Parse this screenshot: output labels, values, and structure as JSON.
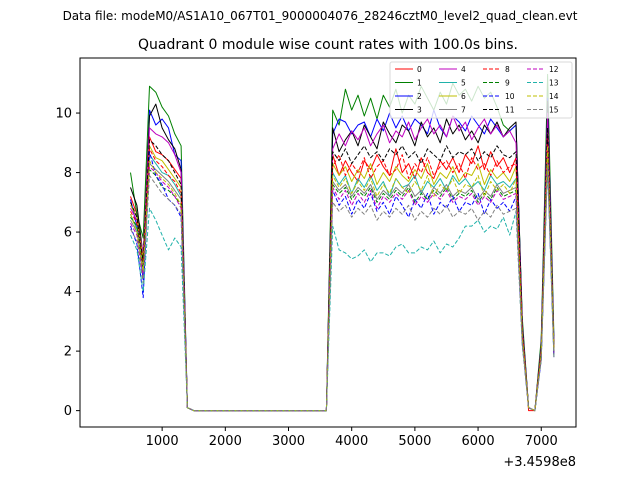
{
  "chart_data": {
    "type": "line",
    "suptitle": "Data file: modeM0/AS1A10_067T01_9000004076_28246cztM0_level2_quad_clean.evt",
    "title": "Quadrant 0 module wise count rates with 100.0s bins.",
    "xlabel": "",
    "ylabel": "",
    "x_offset_label": "+3.4598e8",
    "xlim": [
      -300,
      7550
    ],
    "ylim": [
      -0.55,
      11.85
    ],
    "xticks": [
      1000,
      2000,
      3000,
      4000,
      5000,
      6000,
      7000
    ],
    "yticks": [
      0,
      2,
      4,
      6,
      8,
      10
    ],
    "legend_position": "top-right",
    "x": [
      500,
      600,
      700,
      800,
      900,
      1000,
      1100,
      1200,
      1300,
      1400,
      1500,
      1600,
      1700,
      1800,
      1900,
      2000,
      2100,
      2200,
      2300,
      2400,
      2500,
      2600,
      2700,
      2800,
      2900,
      3000,
      3100,
      3200,
      3300,
      3400,
      3500,
      3600,
      3700,
      3800,
      3900,
      4000,
      4100,
      4200,
      4300,
      4400,
      4500,
      4600,
      4700,
      4800,
      4900,
      5000,
      5100,
      5200,
      5300,
      5400,
      5500,
      5600,
      5700,
      5800,
      5900,
      6000,
      6100,
      6200,
      6300,
      6400,
      6500,
      6600,
      6700,
      6800,
      6900,
      7000,
      7100,
      7200
    ],
    "series": [
      {
        "name": "0",
        "color": "#ff0000",
        "dash": false,
        "values": [
          7.2,
          6.6,
          5.0,
          9.2,
          8.7,
          8.6,
          8.4,
          8.1,
          7.8,
          0.1,
          0.0,
          0.0,
          0.0,
          0.0,
          0.0,
          0.0,
          0.0,
          0.0,
          0.0,
          0.0,
          0.0,
          0.0,
          0.0,
          0.0,
          0.0,
          0.0,
          0.0,
          0.0,
          0.0,
          0.0,
          0.0,
          0.0,
          8.6,
          7.9,
          8.4,
          8.0,
          7.7,
          8.4,
          8.1,
          8.6,
          8.2,
          7.9,
          8.8,
          8.0,
          8.3,
          7.8,
          8.5,
          8.0,
          7.8,
          8.4,
          8.1,
          8.5,
          8.0,
          8.6,
          8.3,
          8.9,
          8.1,
          8.7,
          8.2,
          8.5,
          8.0,
          8.5,
          2.7,
          0.0,
          0.0,
          2.0,
          9.0,
          2.1
        ]
      },
      {
        "name": "1",
        "color": "#008000",
        "dash": false,
        "values": [
          8.0,
          6.6,
          5.8,
          10.9,
          10.7,
          10.2,
          9.9,
          9.3,
          8.9,
          0.1,
          0.0,
          0.0,
          0.0,
          0.0,
          0.0,
          0.0,
          0.0,
          0.0,
          0.0,
          0.0,
          0.0,
          0.0,
          0.0,
          0.0,
          0.0,
          0.0,
          0.0,
          0.0,
          0.0,
          0.0,
          0.0,
          0.0,
          10.1,
          9.6,
          10.8,
          10.1,
          10.6,
          9.9,
          10.5,
          9.8,
          10.6,
          10.2,
          10.8,
          10.0,
          10.6,
          10.3,
          10.9,
          10.5,
          10.1,
          10.7,
          10.3,
          11.0,
          10.6,
          10.8,
          10.4,
          10.9,
          10.5,
          10.7,
          10.2,
          9.6,
          9.4,
          9.6,
          3.1,
          0.1,
          0.0,
          2.4,
          11.3,
          2.5
        ]
      },
      {
        "name": "2",
        "color": "#0000ff",
        "dash": false,
        "values": [
          7.1,
          6.2,
          4.4,
          10.1,
          9.6,
          9.8,
          9.5,
          8.6,
          8.4,
          0.1,
          0.0,
          0.0,
          0.0,
          0.0,
          0.0,
          0.0,
          0.0,
          0.0,
          0.0,
          0.0,
          0.0,
          0.0,
          0.0,
          0.0,
          0.0,
          0.0,
          0.0,
          0.0,
          0.0,
          0.0,
          0.0,
          0.0,
          9.3,
          9.8,
          9.7,
          9.3,
          9.6,
          9.7,
          9.2,
          9.8,
          9.4,
          10.0,
          9.5,
          9.9,
          9.4,
          9.8,
          9.6,
          9.3,
          10.1,
          9.5,
          9.2,
          9.9,
          9.7,
          9.4,
          9.9,
          9.6,
          9.3,
          9.8,
          9.5,
          9.2,
          9.4,
          9.6,
          2.9,
          0.1,
          0.0,
          2.2,
          10.5,
          2.3
        ]
      },
      {
        "name": "3",
        "color": "#000000",
        "dash": false,
        "values": [
          7.5,
          6.9,
          5.2,
          9.9,
          10.3,
          9.5,
          9.1,
          8.8,
          8.1,
          0.1,
          0.0,
          0.0,
          0.0,
          0.0,
          0.0,
          0.0,
          0.0,
          0.0,
          0.0,
          0.0,
          0.0,
          0.0,
          0.0,
          0.0,
          0.0,
          0.0,
          0.0,
          0.0,
          0.0,
          0.0,
          0.0,
          0.0,
          9.5,
          8.7,
          9.1,
          9.4,
          8.9,
          9.6,
          9.2,
          8.8,
          9.7,
          9.3,
          9.0,
          9.6,
          9.4,
          8.9,
          9.7,
          9.2,
          9.5,
          9.0,
          9.8,
          9.3,
          9.6,
          9.1,
          9.4,
          9.0,
          9.6,
          9.3,
          9.7,
          9.2,
          9.5,
          9.7,
          2.9,
          0.1,
          0.0,
          2.2,
          10.4,
          2.2
        ]
      },
      {
        "name": "4",
        "color": "#bf00bf",
        "dash": false,
        "values": [
          6.8,
          6.4,
          5.3,
          9.5,
          9.3,
          9.2,
          9.0,
          8.6,
          8.0,
          0.1,
          0.0,
          0.0,
          0.0,
          0.0,
          0.0,
          0.0,
          0.0,
          0.0,
          0.0,
          0.0,
          0.0,
          0.0,
          0.0,
          0.0,
          0.0,
          0.0,
          0.0,
          0.0,
          0.0,
          0.0,
          0.0,
          0.0,
          8.8,
          9.3,
          8.9,
          9.4,
          9.1,
          9.5,
          8.9,
          9.3,
          9.6,
          9.0,
          9.4,
          9.2,
          9.7,
          9.1,
          9.5,
          9.8,
          9.3,
          9.6,
          9.2,
          9.9,
          9.4,
          9.7,
          9.1,
          9.5,
          9.8,
          9.3,
          9.6,
          9.2,
          9.4,
          9.0,
          2.8,
          0.1,
          0.0,
          2.1,
          10.0,
          2.2
        ]
      },
      {
        "name": "5",
        "color": "#20b2aa",
        "dash": false,
        "values": [
          6.6,
          6.1,
          4.8,
          8.6,
          8.3,
          8.0,
          7.9,
          7.6,
          7.2,
          0.1,
          0.0,
          0.0,
          0.0,
          0.0,
          0.0,
          0.0,
          0.0,
          0.0,
          0.0,
          0.0,
          0.0,
          0.0,
          0.0,
          0.0,
          0.0,
          0.0,
          0.0,
          0.0,
          0.0,
          0.0,
          0.0,
          0.0,
          8.0,
          7.6,
          7.9,
          7.3,
          7.8,
          7.5,
          7.9,
          7.4,
          7.7,
          7.2,
          7.8,
          7.5,
          7.6,
          7.9,
          7.3,
          7.7,
          7.5,
          7.8,
          7.4,
          7.9,
          7.6,
          7.8,
          7.5,
          7.7,
          7.4,
          7.9,
          7.6,
          7.7,
          7.5,
          7.8,
          2.5,
          0.1,
          0.0,
          1.9,
          9.0,
          2.0
        ]
      },
      {
        "name": "6",
        "color": "#bfbf00",
        "dash": false,
        "values": [
          6.9,
          6.5,
          5.1,
          8.9,
          8.5,
          8.4,
          8.1,
          7.8,
          7.5,
          0.1,
          0.0,
          0.0,
          0.0,
          0.0,
          0.0,
          0.0,
          0.0,
          0.0,
          0.0,
          0.0,
          0.0,
          0.0,
          0.0,
          0.0,
          0.0,
          0.0,
          0.0,
          0.0,
          0.0,
          0.0,
          0.0,
          0.0,
          8.3,
          7.9,
          8.2,
          7.7,
          8.1,
          7.8,
          8.3,
          7.6,
          8.0,
          7.7,
          8.2,
          7.9,
          7.7,
          8.1,
          7.8,
          8.3,
          7.6,
          8.0,
          7.8,
          8.2,
          7.7,
          8.0,
          7.9,
          8.3,
          7.6,
          8.1,
          7.8,
          8.0,
          7.7,
          8.2,
          2.6,
          0.1,
          0.0,
          2.0,
          9.3,
          2.1
        ]
      },
      {
        "name": "7",
        "color": "#808080",
        "dash": false,
        "values": [
          6.4,
          6.0,
          4.6,
          8.3,
          8.1,
          7.9,
          7.7,
          7.4,
          7.1,
          0.1,
          0.0,
          0.0,
          0.0,
          0.0,
          0.0,
          0.0,
          0.0,
          0.0,
          0.0,
          0.0,
          0.0,
          0.0,
          0.0,
          0.0,
          0.0,
          0.0,
          0.0,
          0.0,
          0.0,
          0.0,
          0.0,
          0.0,
          7.7,
          7.4,
          7.6,
          7.2,
          7.5,
          7.3,
          7.6,
          7.1,
          7.4,
          7.2,
          7.5,
          7.3,
          7.6,
          7.2,
          7.4,
          7.1,
          7.5,
          7.3,
          7.6,
          7.2,
          7.4,
          7.3,
          7.5,
          7.1,
          7.4,
          7.2,
          7.6,
          7.3,
          7.4,
          7.5,
          2.4,
          0.1,
          0.0,
          1.8,
          8.8,
          1.9
        ]
      },
      {
        "name": "8",
        "color": "#ff0000",
        "dash": true,
        "values": [
          6.7,
          6.3,
          4.9,
          8.8,
          8.4,
          8.2,
          7.9,
          7.7,
          7.3,
          0.1,
          0.0,
          0.0,
          0.0,
          0.0,
          0.0,
          0.0,
          0.0,
          0.0,
          0.0,
          0.0,
          0.0,
          0.0,
          0.0,
          0.0,
          0.0,
          0.0,
          0.0,
          0.0,
          0.0,
          0.0,
          0.0,
          0.0,
          8.2,
          8.6,
          7.9,
          8.3,
          8.0,
          8.5,
          7.8,
          8.2,
          8.4,
          7.9,
          8.1,
          8.6,
          7.8,
          8.3,
          8.0,
          8.5,
          7.9,
          8.2,
          8.4,
          8.0,
          8.3,
          7.8,
          8.5,
          8.1,
          8.3,
          7.9,
          8.4,
          8.0,
          8.2,
          8.3,
          2.6,
          0.1,
          0.0,
          2.0,
          9.2,
          2.0
        ]
      },
      {
        "name": "9",
        "color": "#008000",
        "dash": true,
        "values": [
          6.5,
          6.2,
          4.7,
          8.1,
          7.9,
          7.5,
          7.4,
          7.2,
          6.9,
          0.1,
          0.0,
          0.0,
          0.0,
          0.0,
          0.0,
          0.0,
          0.0,
          0.0,
          0.0,
          0.0,
          0.0,
          0.0,
          0.0,
          0.0,
          0.0,
          0.0,
          0.0,
          0.0,
          0.0,
          0.0,
          0.0,
          0.0,
          7.6,
          7.3,
          7.5,
          7.1,
          7.4,
          7.2,
          7.5,
          7.0,
          7.3,
          7.1,
          7.4,
          7.2,
          7.5,
          7.0,
          7.3,
          7.1,
          7.4,
          7.2,
          7.5,
          7.1,
          7.3,
          7.2,
          7.4,
          7.0,
          7.3,
          7.1,
          7.5,
          7.2,
          7.3,
          7.4,
          2.4,
          0.1,
          0.0,
          1.8,
          8.6,
          1.9
        ]
      },
      {
        "name": "10",
        "color": "#0000ff",
        "dash": true,
        "values": [
          6.2,
          5.6,
          3.8,
          8.7,
          7.9,
          7.6,
          7.1,
          6.9,
          6.5,
          0.1,
          0.0,
          0.0,
          0.0,
          0.0,
          0.0,
          0.0,
          0.0,
          0.0,
          0.0,
          0.0,
          0.0,
          0.0,
          0.0,
          0.0,
          0.0,
          0.0,
          0.0,
          0.0,
          0.0,
          0.0,
          0.0,
          0.0,
          7.4,
          6.9,
          7.2,
          6.6,
          7.1,
          6.8,
          7.3,
          6.7,
          7.0,
          6.6,
          7.2,
          6.9,
          6.5,
          7.1,
          6.8,
          7.3,
          6.6,
          7.0,
          6.8,
          7.2,
          6.7,
          7.0,
          6.9,
          7.3,
          6.6,
          7.1,
          6.8,
          7.0,
          6.7,
          7.2,
          2.3,
          0.1,
          0.0,
          1.7,
          8.4,
          1.8
        ]
      },
      {
        "name": "11",
        "color": "#000000",
        "dash": true,
        "values": [
          7.0,
          6.5,
          5.0,
          9.1,
          8.9,
          8.6,
          8.4,
          8.0,
          7.6,
          0.1,
          0.0,
          0.0,
          0.0,
          0.0,
          0.0,
          0.0,
          0.0,
          0.0,
          0.0,
          0.0,
          0.0,
          0.0,
          0.0,
          0.0,
          0.0,
          0.0,
          0.0,
          0.0,
          0.0,
          0.0,
          0.0,
          0.0,
          8.7,
          8.4,
          8.8,
          8.3,
          8.6,
          8.9,
          8.5,
          8.7,
          8.4,
          8.8,
          8.6,
          8.9,
          8.5,
          8.7,
          8.3,
          8.8,
          8.6,
          8.4,
          8.9,
          8.5,
          8.7,
          8.6,
          8.8,
          8.4,
          8.7,
          8.5,
          8.9,
          8.6,
          8.5,
          8.7,
          2.7,
          0.1,
          0.0,
          2.0,
          9.5,
          2.1
        ]
      },
      {
        "name": "12",
        "color": "#bf00bf",
        "dash": true,
        "values": [
          6.3,
          5.9,
          4.5,
          8.2,
          8.0,
          7.7,
          7.5,
          7.2,
          6.8,
          0.1,
          0.0,
          0.0,
          0.0,
          0.0,
          0.0,
          0.0,
          0.0,
          0.0,
          0.0,
          0.0,
          0.0,
          0.0,
          0.0,
          0.0,
          0.0,
          0.0,
          0.0,
          0.0,
          0.0,
          0.0,
          0.0,
          0.0,
          7.5,
          7.1,
          7.4,
          6.9,
          7.3,
          7.0,
          7.4,
          6.8,
          7.2,
          7.0,
          7.3,
          7.1,
          7.4,
          6.9,
          7.2,
          7.0,
          7.3,
          7.1,
          7.4,
          7.0,
          7.2,
          7.1,
          7.3,
          6.9,
          7.2,
          7.0,
          7.4,
          7.1,
          7.2,
          7.3,
          2.4,
          0.1,
          0.0,
          1.8,
          8.5,
          1.9
        ]
      },
      {
        "name": "13",
        "color": "#20b2aa",
        "dash": true,
        "values": [
          5.9,
          5.4,
          4.0,
          6.8,
          6.4,
          5.9,
          5.4,
          5.8,
          5.5,
          0.1,
          0.0,
          0.0,
          0.0,
          0.0,
          0.0,
          0.0,
          0.0,
          0.0,
          0.0,
          0.0,
          0.0,
          0.0,
          0.0,
          0.0,
          0.0,
          0.0,
          0.0,
          0.0,
          0.0,
          0.0,
          0.0,
          0.0,
          6.2,
          5.4,
          5.3,
          5.1,
          5.2,
          5.4,
          5.0,
          5.3,
          5.3,
          5.2,
          5.5,
          5.6,
          5.3,
          5.3,
          5.5,
          5.4,
          5.7,
          5.3,
          5.6,
          5.5,
          5.8,
          6.2,
          6.2,
          6.4,
          6.0,
          6.2,
          6.1,
          6.5,
          5.9,
          6.7,
          2.2,
          0.1,
          0.0,
          1.7,
          8.2,
          1.8
        ]
      },
      {
        "name": "14",
        "color": "#bfbf00",
        "dash": true,
        "values": [
          6.6,
          6.0,
          4.7,
          8.4,
          8.0,
          7.8,
          7.6,
          7.3,
          6.9,
          0.1,
          0.0,
          0.0,
          0.0,
          0.0,
          0.0,
          0.0,
          0.0,
          0.0,
          0.0,
          0.0,
          0.0,
          0.0,
          0.0,
          0.0,
          0.0,
          0.0,
          0.0,
          0.0,
          0.0,
          0.0,
          0.0,
          0.0,
          7.9,
          7.5,
          7.8,
          7.3,
          7.7,
          7.4,
          7.8,
          7.2,
          7.6,
          7.3,
          7.8,
          7.5,
          7.3,
          7.7,
          7.4,
          7.9,
          7.2,
          7.6,
          7.4,
          7.8,
          7.3,
          7.6,
          7.5,
          7.9,
          7.2,
          7.7,
          7.4,
          7.6,
          7.3,
          7.8,
          2.5,
          0.1,
          0.0,
          1.9,
          8.9,
          2.0
        ]
      },
      {
        "name": "15",
        "color": "#808080",
        "dash": true,
        "values": [
          6.1,
          5.7,
          4.3,
          7.9,
          7.6,
          7.3,
          7.1,
          6.9,
          6.6,
          0.1,
          0.0,
          0.0,
          0.0,
          0.0,
          0.0,
          0.0,
          0.0,
          0.0,
          0.0,
          0.0,
          0.0,
          0.0,
          0.0,
          0.0,
          0.0,
          0.0,
          0.0,
          0.0,
          0.0,
          0.0,
          0.0,
          0.0,
          7.0,
          6.7,
          6.9,
          6.5,
          6.8,
          6.6,
          6.9,
          6.4,
          6.7,
          6.5,
          6.8,
          6.6,
          6.9,
          6.4,
          6.7,
          6.5,
          6.8,
          6.6,
          6.9,
          6.5,
          6.7,
          6.6,
          6.8,
          6.4,
          6.7,
          6.5,
          6.9,
          6.6,
          6.7,
          6.8,
          2.2,
          0.1,
          0.0,
          1.7,
          8.3,
          1.8
        ]
      }
    ]
  }
}
